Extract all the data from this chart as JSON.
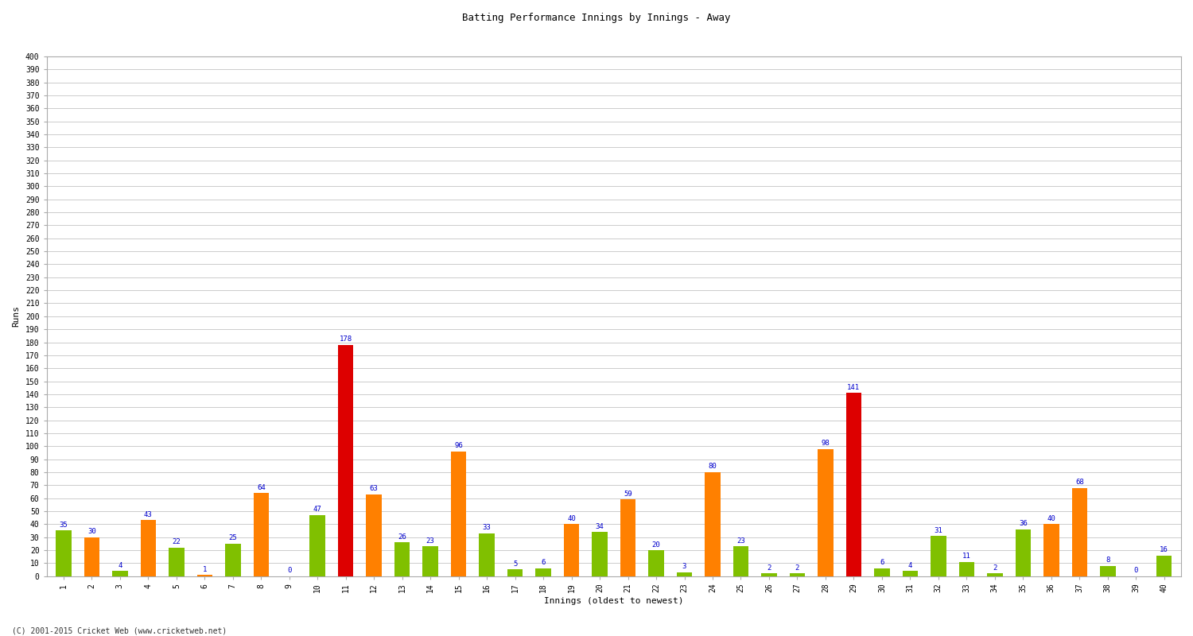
{
  "title": "Batting Performance Innings by Innings - Away",
  "xlabel": "Innings (oldest to newest)",
  "ylabel": "Runs",
  "ylim": [
    0,
    400
  ],
  "yticks": [
    0,
    10,
    20,
    30,
    40,
    50,
    60,
    70,
    80,
    90,
    100,
    110,
    120,
    130,
    140,
    150,
    160,
    170,
    180,
    190,
    200,
    210,
    220,
    230,
    240,
    250,
    260,
    270,
    280,
    290,
    300,
    310,
    320,
    330,
    340,
    350,
    360,
    370,
    380,
    390,
    400
  ],
  "innings": [
    1,
    2,
    3,
    4,
    5,
    6,
    7,
    8,
    9,
    10,
    11,
    12,
    13,
    14,
    15,
    16,
    17,
    18,
    19,
    20,
    21,
    22,
    23,
    24,
    25,
    26,
    27,
    28,
    29,
    30,
    31,
    32,
    33,
    34,
    35,
    36,
    37,
    38,
    39,
    40
  ],
  "values": [
    35,
    30,
    4,
    43,
    22,
    1,
    25,
    64,
    0,
    47,
    178,
    63,
    26,
    23,
    96,
    33,
    5,
    6,
    40,
    34,
    59,
    20,
    3,
    80,
    23,
    2,
    2,
    98,
    141,
    6,
    4,
    31,
    11,
    2,
    36,
    40,
    68,
    8,
    0,
    16
  ],
  "colors": [
    "#80c000",
    "#ff8000",
    "#80c000",
    "#ff8000",
    "#80c000",
    "#ff8000",
    "#80c000",
    "#ff8000",
    "#80c000",
    "#80c000",
    "#dd0000",
    "#ff8000",
    "#80c000",
    "#80c000",
    "#ff8000",
    "#80c000",
    "#80c000",
    "#80c000",
    "#ff8000",
    "#80c000",
    "#ff8000",
    "#80c000",
    "#80c000",
    "#ff8000",
    "#80c000",
    "#80c000",
    "#80c000",
    "#ff8000",
    "#dd0000",
    "#80c000",
    "#80c000",
    "#80c000",
    "#80c000",
    "#80c000",
    "#80c000",
    "#ff8000",
    "#ff8000",
    "#80c000",
    "#80c000",
    "#80c000"
  ],
  "footer": "(C) 2001-2015 Cricket Web (www.cricketweb.net)",
  "background_color": "#ffffff",
  "grid_color": "#cccccc",
  "label_color": "#0000cc",
  "bar_width": 0.55,
  "title_fontsize": 9,
  "tick_fontsize": 7,
  "label_fontsize": 8,
  "value_fontsize": 6.5
}
